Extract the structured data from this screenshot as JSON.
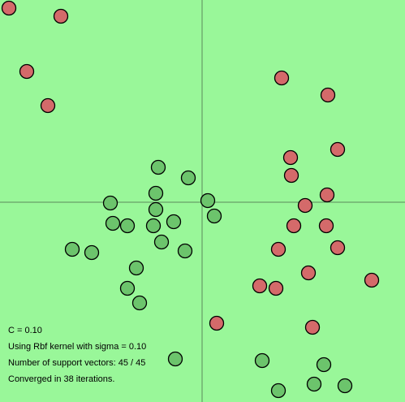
{
  "chart_data": {
    "type": "scatter",
    "xlim": [
      -4.98,
      5.0
    ],
    "ylim": [
      -4.92,
      4.98
    ],
    "background": "#99f799",
    "series": [
      {
        "color": "#d46a6a",
        "x": [
          -4.76,
          -3.48,
          -4.32,
          -3.8,
          1.96,
          3.1,
          2.18,
          3.34,
          2.2,
          3.08,
          2.54,
          2.26,
          3.06,
          3.34,
          1.88,
          2.62,
          4.18,
          1.42,
          1.82,
          0.36,
          2.72
        ],
        "y": [
          4.78,
          4.58,
          3.22,
          2.38,
          3.06,
          2.64,
          1.1,
          1.3,
          0.66,
          0.18,
          -0.08,
          -0.58,
          -0.58,
          -1.12,
          -1.16,
          -1.74,
          -1.92,
          -2.06,
          -2.12,
          -2.98,
          -3.08
        ]
      },
      {
        "color": "#6cc46c",
        "x": [
          -1.08,
          -0.34,
          -1.14,
          -2.26,
          0.14,
          -1.14,
          0.3,
          -2.2,
          -1.84,
          -1.2,
          -0.7,
          -1.0,
          -0.42,
          -3.2,
          -2.72,
          -1.62,
          -1.84,
          -1.54,
          -0.66,
          1.48,
          3.0,
          2.76,
          3.52,
          1.88
        ],
        "y": [
          0.86,
          0.6,
          0.22,
          -0.02,
          0.04,
          -0.18,
          -0.34,
          -0.52,
          -0.58,
          -0.58,
          -0.48,
          -0.98,
          -1.2,
          -1.16,
          -1.24,
          -1.62,
          -2.12,
          -2.48,
          -3.86,
          -3.9,
          -4.0,
          -4.48,
          -4.52,
          -4.64
        ]
      }
    ],
    "annotations": [
      "C = 0.10",
      "Using Rbf kernel with sigma = 0.10",
      "Number of support vectors: 45 / 45",
      "Converged in 38 iterations."
    ]
  }
}
